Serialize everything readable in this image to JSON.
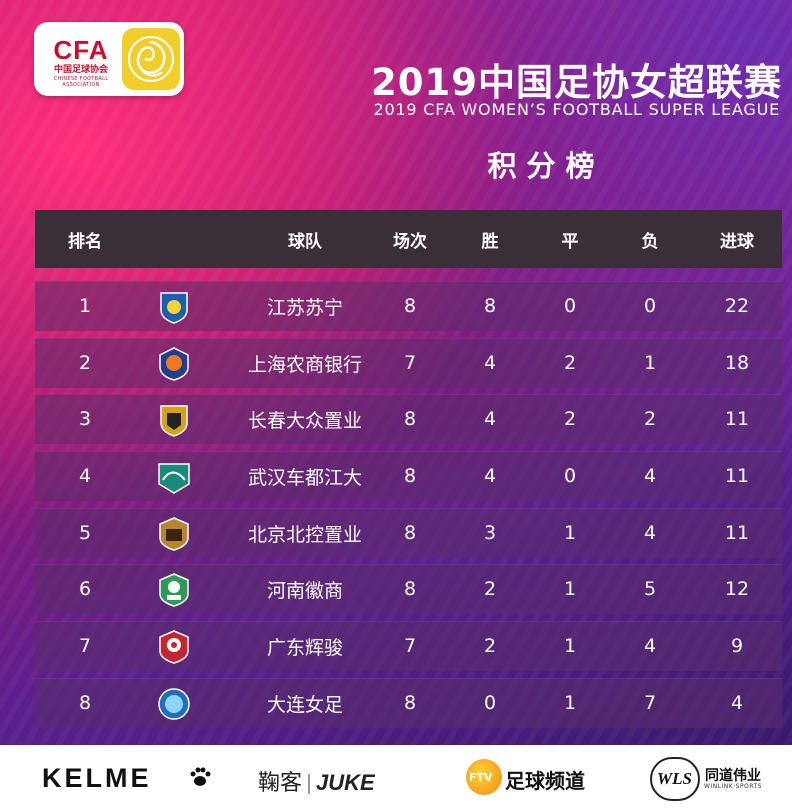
{
  "header": {
    "logo": {
      "text": "CFA",
      "subtext": "中国足球协会",
      "tinytext": "CHINESE FOOTBALL ASSOCIATION",
      "icon": "rose-icon"
    },
    "title_cn": "2019中国足协女超联赛",
    "title_en": "2019 CFA WOMEN’S FOOTBALL SUPER LEAGUE",
    "subtitle": "积分榜"
  },
  "table": {
    "columns": [
      "排名",
      "球队",
      "场次",
      "胜",
      "平",
      "负",
      "进球"
    ],
    "rows": [
      {
        "rank": "1",
        "team": "江苏苏宁",
        "played": "8",
        "won": "8",
        "drawn": "0",
        "lost": "0",
        "goals": "22",
        "badge_color": "#1c5fae",
        "badge_icon": "jiangsu-suning-crest-icon"
      },
      {
        "rank": "2",
        "team": "上海农商银行",
        "played": "7",
        "won": "4",
        "drawn": "2",
        "lost": "1",
        "goals": "18",
        "badge_color": "#1d3f8f",
        "badge_icon": "shanghai-crest-icon"
      },
      {
        "rank": "3",
        "team": "长春大众置业",
        "played": "8",
        "won": "4",
        "drawn": "2",
        "lost": "2",
        "goals": "11",
        "badge_color": "#d6a21b",
        "badge_icon": "changchun-crest-icon"
      },
      {
        "rank": "4",
        "team": "武汉车都江大",
        "played": "8",
        "won": "4",
        "drawn": "0",
        "lost": "4",
        "goals": "11",
        "badge_color": "#1a8a7a",
        "badge_icon": "wuhan-crest-icon"
      },
      {
        "rank": "5",
        "team": "北京北控置业",
        "played": "8",
        "won": "3",
        "drawn": "1",
        "lost": "4",
        "goals": "11",
        "badge_color": "#b5862b",
        "badge_icon": "beijing-crest-icon"
      },
      {
        "rank": "6",
        "team": "河南徽商",
        "played": "8",
        "won": "2",
        "drawn": "1",
        "lost": "5",
        "goals": "12",
        "badge_color": "#2e9a5a",
        "badge_icon": "henan-crest-icon"
      },
      {
        "rank": "7",
        "team": "广东辉骏",
        "played": "7",
        "won": "2",
        "drawn": "1",
        "lost": "4",
        "goals": "9",
        "badge_color": "#c2262e",
        "badge_icon": "guangdong-crest-icon"
      },
      {
        "rank": "8",
        "team": "大连女足",
        "played": "8",
        "won": "0",
        "drawn": "1",
        "lost": "7",
        "goals": "4",
        "badge_color": "#1f6fbf",
        "badge_icon": "dalian-crest-icon"
      }
    ]
  },
  "sponsors": {
    "kelme": "KELME",
    "kelme_icon": "paw-icon",
    "juke_cn": "鞠客",
    "juke_en": "JUKE",
    "ftv_badge": "FTV",
    "ftv_text": "足球频道",
    "wls_badge": "WLS",
    "wls_cn": "同道伟业",
    "wls_en": "WINLINK·SPORTS"
  }
}
